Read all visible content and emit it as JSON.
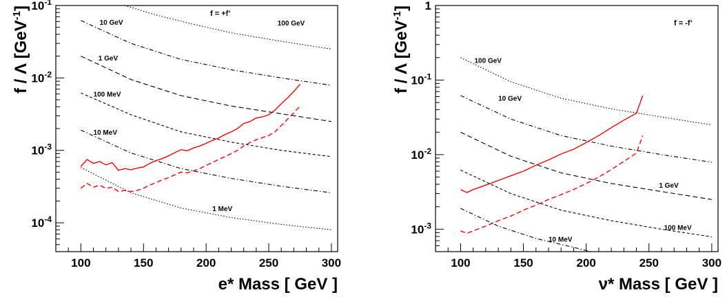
{
  "chart_data": [
    {
      "type": "line",
      "tag": "f = +f’",
      "xlabel": "e* Mass [ GeV ]",
      "ylabel": "f / Λ [GeV⁻¹]",
      "xlim": [
        80,
        305
      ],
      "ylim": [
        4e-05,
        0.1
      ],
      "yscale": "log",
      "xticks": [
        "100",
        "150",
        "200",
        "250",
        "300"
      ],
      "yticks": [
        "10⁻⁴",
        "10⁻³",
        "10⁻²",
        "10⁻¹"
      ],
      "grid": false,
      "series": [
        {
          "role": "limit",
          "color": "#ff0000",
          "style": "solid",
          "x": [
            100,
            105,
            110,
            115,
            120,
            125,
            130,
            135,
            140,
            145,
            150,
            155,
            160,
            165,
            170,
            175,
            180,
            185,
            190,
            195,
            200,
            205,
            210,
            215,
            220,
            225,
            230,
            235,
            240,
            245,
            250,
            255,
            260,
            265,
            270,
            275
          ],
          "y": [
            0.0006,
            0.00075,
            0.00066,
            0.0007,
            0.00063,
            0.00068,
            0.00053,
            0.00056,
            0.00054,
            0.00057,
            0.00059,
            0.00066,
            0.00072,
            0.00077,
            0.00084,
            0.00093,
            0.00102,
            0.00099,
            0.00108,
            0.00115,
            0.00125,
            0.00137,
            0.00148,
            0.00165,
            0.0018,
            0.002,
            0.00235,
            0.0025,
            0.0028,
            0.0029,
            0.0031,
            0.0036,
            0.0044,
            0.0053,
            0.0065,
            0.0082
          ]
        },
        {
          "role": "limit",
          "color": "#ff0000",
          "style": "dashed",
          "x": [
            100,
            105,
            110,
            115,
            120,
            125,
            130,
            135,
            140,
            145,
            150,
            155,
            160,
            165,
            170,
            175,
            180,
            185,
            190,
            195,
            200,
            205,
            210,
            215,
            220,
            225,
            230,
            235,
            240,
            245,
            250,
            255,
            260,
            265,
            270,
            275
          ],
          "y": [
            0.0003,
            0.00035,
            0.00031,
            0.00033,
            0.0003,
            0.00031,
            0.00027,
            0.00028,
            0.00027,
            0.00028,
            0.0003,
            0.00033,
            0.00036,
            0.00039,
            0.00042,
            0.00046,
            0.0005,
            0.00049,
            0.00052,
            0.00056,
            0.00062,
            0.00068,
            0.00075,
            0.00082,
            0.0009,
            0.001,
            0.00115,
            0.00128,
            0.0014,
            0.0015,
            0.0016,
            0.0018,
            0.0022,
            0.0027,
            0.0033,
            0.0041
          ]
        },
        {
          "label": "1 MeV",
          "style": "dotted",
          "x": [
            100,
            140,
            180,
            220,
            260,
            300
          ],
          "y": [
            0.00058,
            0.00026,
            0.00016,
            0.000118,
            9.5e-05,
            8e-05
          ]
        },
        {
          "label": "10 MeV",
          "style": "dashdot",
          "x": [
            100,
            140,
            180,
            220,
            260,
            300
          ],
          "y": [
            0.0019,
            0.00092,
            0.00056,
            0.00041,
            0.00032,
            0.00026
          ]
        },
        {
          "label": "100 MeV",
          "style": "dashed-fine",
          "x": [
            100,
            140,
            180,
            220,
            260,
            300
          ],
          "y": [
            0.0062,
            0.0031,
            0.0018,
            0.0013,
            0.001,
            0.00082
          ]
        },
        {
          "label": "1 GeV",
          "style": "dashed",
          "x": [
            100,
            140,
            180,
            220,
            260,
            300
          ],
          "y": [
            0.02,
            0.0095,
            0.0057,
            0.0041,
            0.0032,
            0.0025
          ]
        },
        {
          "label": "10 GeV",
          "style": "dashdot",
          "x": [
            100,
            140,
            180,
            220,
            260,
            300
          ],
          "y": [
            0.062,
            0.03,
            0.018,
            0.013,
            0.01,
            0.0079
          ]
        },
        {
          "label": "100 GeV",
          "style": "dotted",
          "x": [
            135,
            160,
            190,
            220,
            260,
            300
          ],
          "y": [
            0.1,
            0.074,
            0.055,
            0.042,
            0.032,
            0.025
          ]
        }
      ],
      "curve_label_positions": [
        {
          "text": "1 MeV",
          "x": 205,
          "y": 0.000146
        },
        {
          "text": "10 MeV",
          "x": 110,
          "y": 0.00165
        },
        {
          "text": "100 MeV",
          "x": 110,
          "y": 0.0055
        },
        {
          "text": "1 GeV",
          "x": 114,
          "y": 0.0175
        },
        {
          "text": "10 GeV",
          "x": 115,
          "y": 0.054
        },
        {
          "text": "100 GeV",
          "x": 257,
          "y": 0.053
        }
      ]
    },
    {
      "type": "line",
      "tag": "f = -f’",
      "xlabel": "ν* Mass [ GeV ]",
      "ylabel": "f / Λ [GeV⁻¹]",
      "xlim": [
        80,
        305
      ],
      "ylim": [
        0.0005,
        1
      ],
      "yscale": "log",
      "xticks": [
        "100",
        "150",
        "200",
        "250",
        "300"
      ],
      "yticks": [
        "10⁻³",
        "10⁻²",
        "10⁻¹",
        "1"
      ],
      "grid": false,
      "series": [
        {
          "role": "limit",
          "color": "#ff0000",
          "style": "solid",
          "x": [
            100,
            105,
            110,
            120,
            130,
            140,
            150,
            160,
            170,
            180,
            190,
            200,
            210,
            220,
            230,
            240,
            245
          ],
          "y": [
            0.0034,
            0.0031,
            0.0034,
            0.0039,
            0.0045,
            0.0052,
            0.006,
            0.0072,
            0.0085,
            0.0102,
            0.0118,
            0.0145,
            0.018,
            0.023,
            0.029,
            0.036,
            0.062
          ]
        },
        {
          "role": "limit",
          "color": "#ff0000",
          "style": "dashed",
          "x": [
            100,
            105,
            110,
            120,
            130,
            140,
            150,
            160,
            170,
            180,
            190,
            200,
            210,
            220,
            230,
            240,
            245
          ],
          "y": [
            0.00095,
            0.00088,
            0.00095,
            0.0011,
            0.0013,
            0.0015,
            0.0018,
            0.0021,
            0.0025,
            0.0029,
            0.0034,
            0.0041,
            0.005,
            0.0063,
            0.0081,
            0.0105,
            0.018
          ]
        },
        {
          "label": "10 MeV",
          "style": "dashdot",
          "x": [
            100,
            130,
            160,
            190,
            210
          ],
          "y": [
            0.0019,
            0.0011,
            0.00075,
            0.00057,
            0.00047
          ]
        },
        {
          "label": "100 MeV",
          "style": "dashed-fine",
          "x": [
            100,
            140,
            180,
            220,
            260,
            300
          ],
          "y": [
            0.0062,
            0.003,
            0.0018,
            0.0013,
            0.001,
            0.00079
          ]
        },
        {
          "label": "1 GeV",
          "style": "dashed",
          "x": [
            100,
            140,
            180,
            220,
            260,
            300
          ],
          "y": [
            0.02,
            0.0095,
            0.0057,
            0.0041,
            0.0032,
            0.0025
          ]
        },
        {
          "label": "10 GeV",
          "style": "dashdot",
          "x": [
            100,
            140,
            180,
            220,
            260,
            300
          ],
          "y": [
            0.062,
            0.03,
            0.018,
            0.013,
            0.01,
            0.0079
          ]
        },
        {
          "label": "100 GeV",
          "style": "dotted",
          "x": [
            100,
            140,
            180,
            220,
            260,
            300
          ],
          "y": [
            0.2,
            0.095,
            0.057,
            0.041,
            0.032,
            0.025
          ]
        }
      ],
      "curve_label_positions": [
        {
          "text": "10 MeV",
          "x": 170,
          "y": 0.00068
        },
        {
          "text": "100 MeV",
          "x": 262,
          "y": 0.00098
        },
        {
          "text": "1 GeV",
          "x": 258,
          "y": 0.0036
        },
        {
          "text": "10 GeV",
          "x": 130,
          "y": 0.053
        },
        {
          "text": "100 GeV",
          "x": 111,
          "y": 0.17
        }
      ]
    }
  ]
}
